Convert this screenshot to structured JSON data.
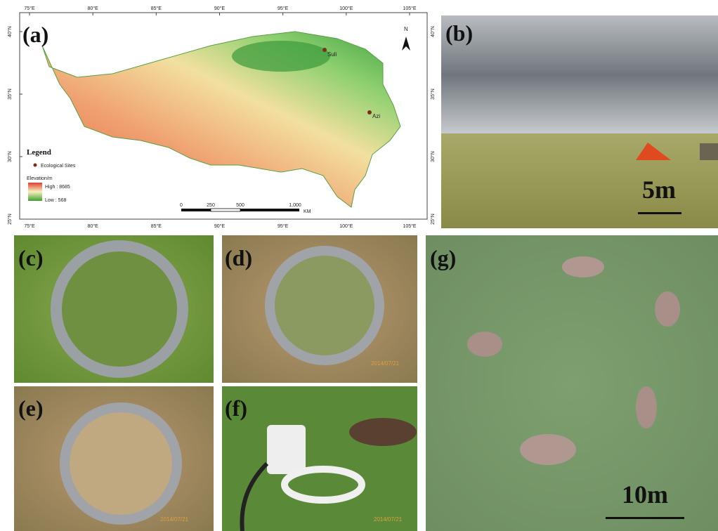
{
  "panels": {
    "a": {
      "label": "(a)",
      "lon_ticks": [
        "75°E",
        "80°E",
        "85°E",
        "90°E",
        "95°E",
        "100°E",
        "105°E"
      ],
      "lat_ticks": [
        "40°N",
        "35°N",
        "30°N",
        "25°N"
      ],
      "sites": [
        "Suli",
        "Azi"
      ],
      "north": "N",
      "legend": {
        "title": "Legend",
        "sites": "Ecological Sites",
        "elevation": "Elevation/m",
        "high": "High : 8685",
        "low": "Low : 568"
      },
      "scale_bar": {
        "ticks": [
          "0",
          "250",
          "500",
          "1,000"
        ],
        "unit": "KM"
      }
    },
    "b": {
      "label": "(b)",
      "scale": "5m"
    },
    "c": {
      "label": "(c)"
    },
    "d": {
      "label": "(d)",
      "stamp": "2014/07/21"
    },
    "e": {
      "label": "(e)",
      "stamp": "2014/07/21"
    },
    "f": {
      "label": "(f)",
      "stamp": "2014/07/21"
    },
    "g": {
      "label": "(g)",
      "scale": "10m"
    }
  }
}
